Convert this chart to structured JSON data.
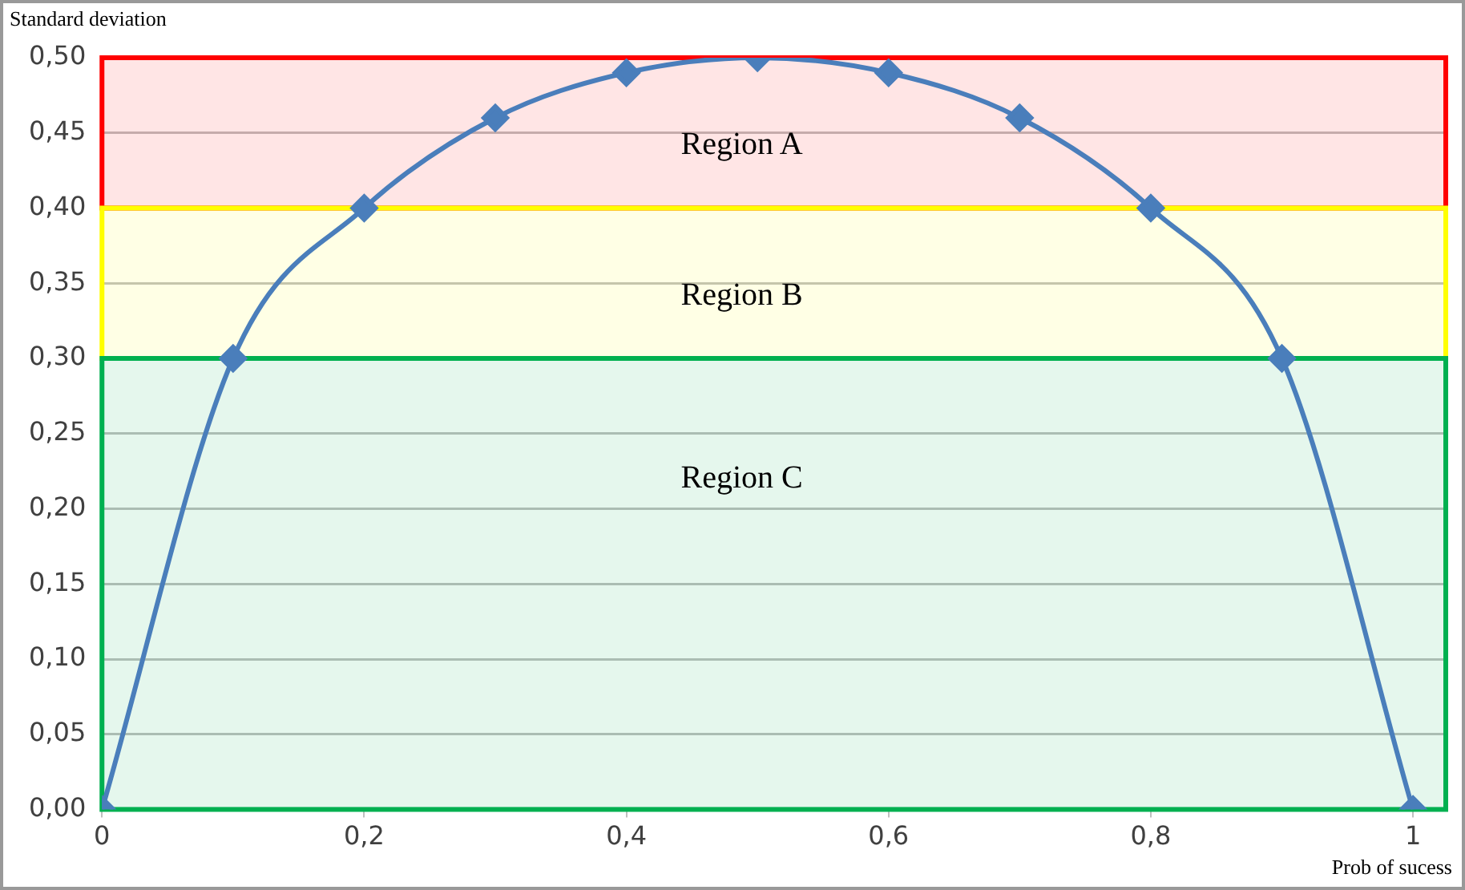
{
  "chart_data": {
    "type": "line",
    "ylabel": "Standard deviation",
    "xlabel": "Prob of sucess",
    "x": [
      0,
      0.1,
      0.2,
      0.3,
      0.4,
      0.5,
      0.6,
      0.7,
      0.8,
      0.9,
      1
    ],
    "series": [
      {
        "color": "#4a7ebb",
        "values": [
          0,
          0.3,
          0.4,
          0.46,
          0.49,
          0.5,
          0.49,
          0.46,
          0.4,
          0.3,
          0
        ]
      }
    ],
    "xlim": [
      0,
      1.025
    ],
    "xticks": [
      {
        "value": 0,
        "label": "0"
      },
      {
        "value": 0.2,
        "label": "0,2"
      },
      {
        "value": 0.4,
        "label": "0,4"
      },
      {
        "value": 0.6,
        "label": "0,6"
      },
      {
        "value": 0.8,
        "label": "0,8"
      },
      {
        "value": 1,
        "label": "1"
      }
    ],
    "ylim": [
      0,
      0.5
    ],
    "yticks": [
      {
        "value": 0,
        "label": "0,00"
      },
      {
        "value": 0.05,
        "label": "0,05"
      },
      {
        "value": 0.1,
        "label": "0,10"
      },
      {
        "value": 0.15,
        "label": "0,15"
      },
      {
        "value": 0.2,
        "label": "0,20"
      },
      {
        "value": 0.25,
        "label": "0,25"
      },
      {
        "value": 0.3,
        "label": "0,30"
      },
      {
        "value": 0.35,
        "label": "0,35"
      },
      {
        "value": 0.4,
        "label": "0,40"
      },
      {
        "value": 0.45,
        "label": "0,45"
      },
      {
        "value": 0.5,
        "label": "0,50"
      }
    ],
    "bands": [
      {
        "axis": "y",
        "from": 0.4,
        "to": 0.5,
        "label": "Region A",
        "color": "#ff0000"
      },
      {
        "axis": "y",
        "from": 0.3,
        "to": 0.4,
        "label": "Region B",
        "color": "#ffff00"
      },
      {
        "axis": "y",
        "from": 0,
        "to": 0.3,
        "label": "Region C",
        "color": "#00b050"
      }
    ],
    "grid": "y",
    "marker": "diamond",
    "line_style": "solid",
    "legend": false
  }
}
